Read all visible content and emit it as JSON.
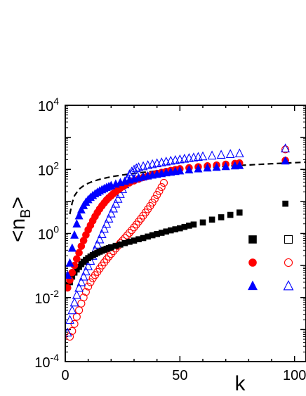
{
  "chart_data": {
    "type": "scatter",
    "xlabel": "k",
    "ylabel": "<nB>",
    "yscale": "log",
    "xlim": [
      0,
      105
    ],
    "ylim": [
      0.0001,
      10000
    ],
    "grid": false,
    "x_ticks": [
      {
        "value": 0,
        "label": "0"
      },
      {
        "value": 50,
        "label": "50"
      },
      {
        "value": 100,
        "label": "100"
      }
    ],
    "y_ticks": [
      {
        "value": 0.0001,
        "base": "10",
        "exp": "-4"
      },
      {
        "value": 0.01,
        "base": "10",
        "exp": "-2"
      },
      {
        "value": 1,
        "base": "10",
        "exp": "0"
      },
      {
        "value": 100,
        "base": "10",
        "exp": "2"
      },
      {
        "value": 10000,
        "base": "10",
        "exp": "4"
      }
    ],
    "legend": {
      "placement": "right",
      "rows": [
        {
          "filled_series": "black-filled-squares",
          "open_series": "black-open-squares"
        },
        {
          "filled_series": "red-filled-circles",
          "open_series": "red-open-circles"
        },
        {
          "filled_series": "blue-filled-triangles",
          "open_series": "blue-open-triangles"
        }
      ]
    },
    "series": [
      {
        "id": "black-filled-squares",
        "marker": "square",
        "filled": true,
        "color": "#000000",
        "points": [
          [
            1,
            0.025
          ],
          [
            2,
            0.03
          ],
          [
            3,
            0.045
          ],
          [
            4,
            0.06
          ],
          [
            5,
            0.075
          ],
          [
            6,
            0.09
          ],
          [
            7,
            0.11
          ],
          [
            8,
            0.13
          ],
          [
            9,
            0.15
          ],
          [
            10,
            0.17
          ],
          [
            11,
            0.19
          ],
          [
            12,
            0.21
          ],
          [
            13,
            0.23
          ],
          [
            14,
            0.25
          ],
          [
            15,
            0.27
          ],
          [
            16,
            0.29
          ],
          [
            17,
            0.31
          ],
          [
            18,
            0.33
          ],
          [
            19,
            0.35
          ],
          [
            20,
            0.37
          ],
          [
            22,
            0.41
          ],
          [
            24,
            0.45
          ],
          [
            26,
            0.5
          ],
          [
            28,
            0.55
          ],
          [
            30,
            0.6
          ],
          [
            32,
            0.66
          ],
          [
            34,
            0.72
          ],
          [
            36,
            0.8
          ],
          [
            38,
            0.88
          ],
          [
            40,
            0.96
          ],
          [
            42,
            1.05
          ],
          [
            44,
            1.15
          ],
          [
            46,
            1.25
          ],
          [
            48,
            1.35
          ],
          [
            50,
            1.45
          ],
          [
            52,
            1.6
          ],
          [
            54,
            1.75
          ],
          [
            56,
            1.9
          ],
          [
            60,
            2.2
          ],
          [
            64,
            2.7
          ],
          [
            68,
            3.2
          ],
          [
            72,
            3.8
          ],
          [
            76,
            4.5
          ],
          [
            96,
            8.5
          ]
        ]
      },
      {
        "id": "black-open-squares",
        "marker": "square",
        "filled": false,
        "color": "#000000",
        "points": []
      },
      {
        "id": "red-filled-circles",
        "marker": "circle",
        "filled": true,
        "color": "#ff0000",
        "points": [
          [
            1,
            0.02
          ],
          [
            2,
            0.035
          ],
          [
            3,
            0.06
          ],
          [
            4,
            0.1
          ],
          [
            5,
            0.16
          ],
          [
            6,
            0.25
          ],
          [
            7,
            0.4
          ],
          [
            8,
            0.6
          ],
          [
            9,
            0.9
          ],
          [
            10,
            1.3
          ],
          [
            11,
            1.8
          ],
          [
            12,
            2.5
          ],
          [
            13,
            3.4
          ],
          [
            14,
            4.5
          ],
          [
            15,
            5.8
          ],
          [
            16,
            7.3
          ],
          [
            17,
            9
          ],
          [
            18,
            11
          ],
          [
            19,
            13
          ],
          [
            20,
            15
          ],
          [
            21,
            17.5
          ],
          [
            22,
            20
          ],
          [
            23,
            23
          ],
          [
            24,
            26
          ],
          [
            25,
            29
          ],
          [
            26,
            32
          ],
          [
            28,
            38
          ],
          [
            30,
            44
          ],
          [
            32,
            50
          ],
          [
            34,
            56
          ],
          [
            36,
            62
          ],
          [
            38,
            68
          ],
          [
            40,
            74
          ],
          [
            42,
            80
          ],
          [
            44,
            86
          ],
          [
            46,
            92
          ],
          [
            48,
            98
          ],
          [
            50,
            104
          ],
          [
            54,
            112
          ],
          [
            58,
            120
          ],
          [
            62,
            128
          ],
          [
            66,
            136
          ],
          [
            70,
            144
          ],
          [
            74,
            152
          ],
          [
            76,
            158
          ],
          [
            96,
            190
          ]
        ]
      },
      {
        "id": "red-open-circles",
        "marker": "circle",
        "filled": false,
        "color": "#ff0000",
        "points": [
          [
            2,
            0.0006
          ],
          [
            3,
            0.0009
          ],
          [
            4,
            0.0015
          ],
          [
            5,
            0.0025
          ],
          [
            6,
            0.004
          ],
          [
            7,
            0.0065
          ],
          [
            8,
            0.01
          ],
          [
            9,
            0.015
          ],
          [
            10,
            0.022
          ],
          [
            11,
            0.03
          ],
          [
            12,
            0.04
          ],
          [
            13,
            0.05
          ],
          [
            14,
            0.063
          ],
          [
            15,
            0.08
          ],
          [
            16,
            0.1
          ],
          [
            17,
            0.125
          ],
          [
            18,
            0.155
          ],
          [
            19,
            0.19
          ],
          [
            20,
            0.23
          ],
          [
            21,
            0.28
          ],
          [
            22,
            0.34
          ],
          [
            23,
            0.41
          ],
          [
            24,
            0.5
          ],
          [
            25,
            0.6
          ],
          [
            26,
            0.72
          ],
          [
            27,
            0.87
          ],
          [
            28,
            1.05
          ],
          [
            29,
            1.27
          ],
          [
            30,
            1.55
          ],
          [
            31,
            1.9
          ],
          [
            32,
            2.35
          ],
          [
            33,
            2.9
          ],
          [
            34,
            3.6
          ],
          [
            35,
            4.5
          ],
          [
            36,
            5.7
          ],
          [
            37,
            7.2
          ],
          [
            38,
            9.2
          ],
          [
            39,
            12
          ],
          [
            40,
            16
          ],
          [
            41,
            21
          ],
          [
            42,
            28
          ],
          [
            43,
            38
          ],
          [
            96,
            420
          ]
        ]
      },
      {
        "id": "blue-filled-triangles",
        "marker": "triangle",
        "filled": true,
        "color": "#0000ff",
        "points": [
          [
            1,
            0.05
          ],
          [
            2,
            0.12
          ],
          [
            3,
            0.35
          ],
          [
            4,
            0.9
          ],
          [
            5,
            2
          ],
          [
            6,
            3.6
          ],
          [
            7,
            5.5
          ],
          [
            8,
            7.5
          ],
          [
            9,
            9.5
          ],
          [
            10,
            11.5
          ],
          [
            11,
            13.5
          ],
          [
            12,
            15.5
          ],
          [
            13,
            17.5
          ],
          [
            14,
            19.5
          ],
          [
            15,
            21.5
          ],
          [
            16,
            23.5
          ],
          [
            17,
            25.5
          ],
          [
            18,
            27.5
          ],
          [
            19,
            29.5
          ],
          [
            20,
            31.5
          ],
          [
            22,
            35
          ],
          [
            24,
            39
          ],
          [
            26,
            43
          ],
          [
            28,
            47
          ],
          [
            30,
            51
          ],
          [
            32,
            55
          ],
          [
            34,
            59
          ],
          [
            36,
            63
          ],
          [
            38,
            67
          ],
          [
            40,
            71
          ],
          [
            42,
            75
          ],
          [
            44,
            79
          ],
          [
            46,
            83
          ],
          [
            48,
            87
          ],
          [
            50,
            91
          ],
          [
            54,
            98
          ],
          [
            58,
            105
          ],
          [
            62,
            112
          ],
          [
            66,
            118
          ],
          [
            70,
            124
          ],
          [
            74,
            130
          ],
          [
            76,
            134
          ],
          [
            96,
            185
          ]
        ]
      },
      {
        "id": "blue-open-triangles",
        "marker": "triangle",
        "filled": false,
        "color": "#0000ff",
        "points": [
          [
            1,
            0.0008
          ],
          [
            2,
            0.002
          ],
          [
            3,
            0.004
          ],
          [
            4,
            0.007
          ],
          [
            5,
            0.012
          ],
          [
            6,
            0.02
          ],
          [
            7,
            0.03
          ],
          [
            8,
            0.045
          ],
          [
            9,
            0.065
          ],
          [
            10,
            0.095
          ],
          [
            11,
            0.14
          ],
          [
            12,
            0.2
          ],
          [
            13,
            0.3
          ],
          [
            14,
            0.45
          ],
          [
            15,
            0.65
          ],
          [
            16,
            0.95
          ],
          [
            17,
            1.4
          ],
          [
            18,
            2
          ],
          [
            19,
            2.9
          ],
          [
            20,
            4.2
          ],
          [
            21,
            6
          ],
          [
            22,
            8.5
          ],
          [
            23,
            12
          ],
          [
            24,
            17
          ],
          [
            25,
            24
          ],
          [
            26,
            34
          ],
          [
            27,
            48
          ],
          [
            28,
            70
          ],
          [
            29,
            85
          ],
          [
            30,
            98
          ],
          [
            31,
            108
          ],
          [
            32,
            116
          ],
          [
            34,
            125
          ],
          [
            36,
            135
          ],
          [
            38,
            145
          ],
          [
            40,
            155
          ],
          [
            42,
            165
          ],
          [
            44,
            175
          ],
          [
            46,
            185
          ],
          [
            48,
            195
          ],
          [
            50,
            205
          ],
          [
            52,
            215
          ],
          [
            54,
            225
          ],
          [
            56,
            235
          ],
          [
            58,
            245
          ],
          [
            60,
            255
          ],
          [
            64,
            270
          ],
          [
            68,
            285
          ],
          [
            72,
            300
          ],
          [
            76,
            315
          ],
          [
            96,
            450
          ]
        ]
      },
      {
        "id": "dashed-curve",
        "marker": "line",
        "line_style": "dashed",
        "color": "#000000",
        "points": [
          [
            2,
            4
          ],
          [
            3,
            9
          ],
          [
            4,
            15
          ],
          [
            6,
            24
          ],
          [
            8,
            31
          ],
          [
            10,
            37
          ],
          [
            12,
            42
          ],
          [
            15,
            49
          ],
          [
            20,
            59
          ],
          [
            25,
            67
          ],
          [
            30,
            75
          ],
          [
            35,
            82
          ],
          [
            40,
            89
          ],
          [
            50,
            102
          ],
          [
            60,
            114
          ],
          [
            70,
            126
          ],
          [
            80,
            138
          ],
          [
            90,
            150
          ],
          [
            100,
            162
          ],
          [
            105,
            168
          ]
        ]
      }
    ]
  }
}
